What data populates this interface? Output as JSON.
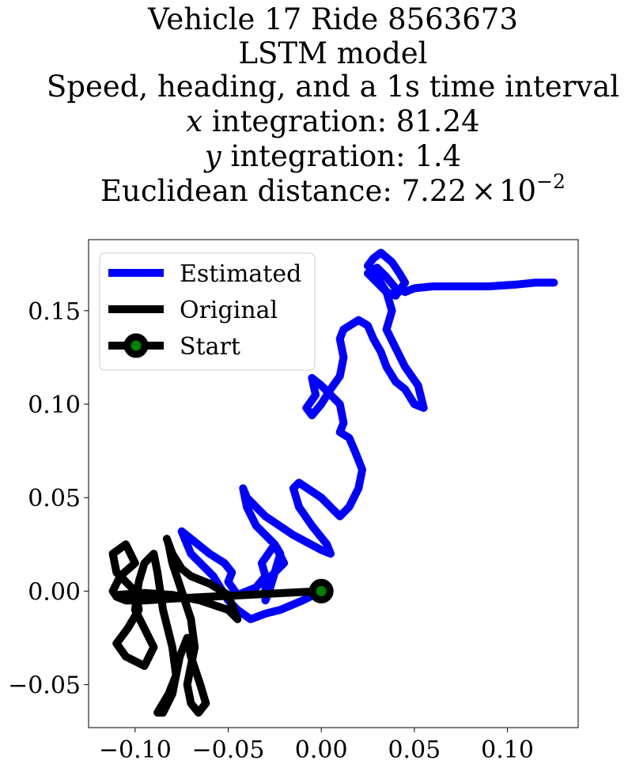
{
  "chart_data": {
    "type": "line",
    "title_lines": [
      "Vehicle 17 Ride 8563673",
      "LSTM model",
      "Speed, heading, and a 1s time interval"
    ],
    "x_integration": {
      "label": "x",
      "text": " integration: 81.24"
    },
    "y_integration": {
      "label": "y",
      "text": " integration: 1.4"
    },
    "euclidean": {
      "text": "Euclidean distance: 7.22",
      "times": "×",
      "base": "10",
      "exponent": "−2"
    },
    "xlim": [
      -0.125,
      0.138
    ],
    "ylim": [
      -0.073,
      0.188
    ],
    "xticks": [
      {
        "value": -0.1,
        "label": "−0.10"
      },
      {
        "value": -0.05,
        "label": "−0.05"
      },
      {
        "value": 0.0,
        "label": "0.00"
      },
      {
        "value": 0.05,
        "label": "0.05"
      },
      {
        "value": 0.1,
        "label": "0.10"
      }
    ],
    "yticks": [
      {
        "value": -0.05,
        "label": "−0.05"
      },
      {
        "value": 0.0,
        "label": "0.00"
      },
      {
        "value": 0.05,
        "label": "0.05"
      },
      {
        "value": 0.1,
        "label": "0.10"
      },
      {
        "value": 0.15,
        "label": "0.15"
      }
    ],
    "grid": false,
    "legend_position": "top-left",
    "legend": [
      {
        "label": "Estimated",
        "key": "estimated"
      },
      {
        "label": "Original",
        "key": "original"
      },
      {
        "label": "Start",
        "key": "start"
      }
    ],
    "series": [
      {
        "name": "Estimated",
        "key": "estimated",
        "color": "#0000ff",
        "x": [
          0.0,
          -0.01,
          -0.022,
          -0.03,
          -0.038,
          -0.045,
          -0.05,
          -0.058,
          -0.07,
          -0.075,
          -0.07,
          -0.06,
          -0.052,
          -0.048,
          -0.05,
          -0.045,
          -0.035,
          -0.03,
          -0.032,
          -0.025,
          -0.022,
          -0.025,
          -0.028,
          -0.03,
          -0.03,
          -0.02,
          -0.025,
          -0.035,
          -0.04,
          -0.042,
          -0.04,
          -0.03,
          -0.015,
          0.0,
          0.005,
          0.003,
          -0.005,
          -0.012,
          -0.015,
          -0.012,
          0.0,
          0.01,
          0.015,
          0.02,
          0.022,
          0.018,
          0.015,
          0.01,
          0.012,
          0.01,
          0.0,
          -0.005,
          -0.003,
          -0.008,
          -0.005,
          0.0,
          0.005,
          0.01,
          0.012,
          0.01,
          0.012,
          0.02,
          0.025,
          0.028,
          0.032,
          0.035,
          0.04,
          0.045,
          0.05,
          0.055,
          0.052,
          0.045,
          0.04,
          0.035,
          0.038,
          0.035,
          0.03,
          0.028,
          0.025,
          0.028,
          0.032,
          0.038,
          0.042,
          0.045,
          0.04,
          0.035,
          0.03,
          0.025,
          0.03,
          0.035,
          0.04,
          0.045,
          0.05,
          0.06,
          0.075,
          0.09,
          0.105,
          0.115,
          0.125
        ],
        "y": [
          0.0,
          -0.005,
          -0.01,
          -0.012,
          -0.015,
          -0.01,
          -0.005,
          0.008,
          0.02,
          0.032,
          0.028,
          0.02,
          0.015,
          0.01,
          0.005,
          -0.002,
          0.002,
          0.008,
          0.015,
          0.025,
          0.02,
          0.01,
          0.0,
          -0.005,
          0.005,
          0.015,
          0.025,
          0.035,
          0.045,
          0.055,
          0.05,
          0.04,
          0.03,
          0.022,
          0.02,
          0.025,
          0.035,
          0.045,
          0.055,
          0.058,
          0.05,
          0.04,
          0.045,
          0.055,
          0.065,
          0.075,
          0.082,
          0.085,
          0.09,
          0.1,
          0.11,
          0.114,
          0.105,
          0.098,
          0.094,
          0.1,
          0.108,
          0.115,
          0.125,
          0.135,
          0.14,
          0.145,
          0.142,
          0.135,
          0.128,
          0.12,
          0.112,
          0.108,
          0.1,
          0.098,
          0.11,
          0.12,
          0.13,
          0.14,
          0.15,
          0.16,
          0.168,
          0.172,
          0.174,
          0.178,
          0.181,
          0.176,
          0.17,
          0.165,
          0.158,
          0.16,
          0.165,
          0.17,
          0.173,
          0.168,
          0.162,
          0.16,
          0.162,
          0.163,
          0.163,
          0.163,
          0.164,
          0.165,
          0.165
        ]
      },
      {
        "name": "Original",
        "key": "original",
        "color": "#000000",
        "x": [
          0.0,
          -0.02,
          -0.04,
          -0.06,
          -0.08,
          -0.095,
          -0.105,
          -0.11,
          -0.112,
          -0.108,
          -0.1,
          -0.105,
          -0.112,
          -0.11,
          -0.1,
          -0.098,
          -0.104,
          -0.11,
          -0.105,
          -0.095,
          -0.09,
          -0.095,
          -0.1,
          -0.098,
          -0.095,
          -0.09,
          -0.088,
          -0.085,
          -0.08,
          -0.078,
          -0.082,
          -0.085,
          -0.088,
          -0.085,
          -0.08,
          -0.078,
          -0.076,
          -0.072,
          -0.07,
          -0.065,
          -0.062,
          -0.066,
          -0.07,
          -0.072,
          -0.07,
          -0.068,
          -0.07,
          -0.075,
          -0.08,
          -0.082,
          -0.083,
          -0.08,
          -0.075,
          -0.07,
          -0.06,
          -0.05,
          -0.045,
          -0.05,
          -0.065,
          -0.08,
          -0.095,
          -0.11
        ],
        "y": [
          0.0,
          -0.001,
          -0.002,
          -0.003,
          -0.004,
          -0.005,
          -0.005,
          -0.003,
          0.0,
          0.008,
          0.015,
          0.025,
          0.02,
          0.01,
          0.0,
          -0.01,
          -0.02,
          -0.028,
          -0.035,
          -0.04,
          -0.03,
          -0.02,
          -0.01,
          0.005,
          0.015,
          0.02,
          0.01,
          -0.01,
          -0.03,
          -0.045,
          -0.055,
          -0.06,
          -0.065,
          -0.065,
          -0.055,
          -0.045,
          -0.035,
          -0.025,
          -0.035,
          -0.05,
          -0.06,
          -0.065,
          -0.06,
          -0.05,
          -0.04,
          -0.03,
          -0.015,
          0.0,
          0.015,
          0.025,
          0.028,
          0.02,
          0.012,
          0.008,
          0.004,
          -0.002,
          -0.015,
          -0.01,
          -0.005,
          -0.002,
          -0.001,
          -0.002
        ]
      }
    ],
    "start_point": {
      "x": 0.0,
      "y": 0.0,
      "marker_edge_color": "#000000",
      "marker_face_color": "#008000"
    }
  }
}
